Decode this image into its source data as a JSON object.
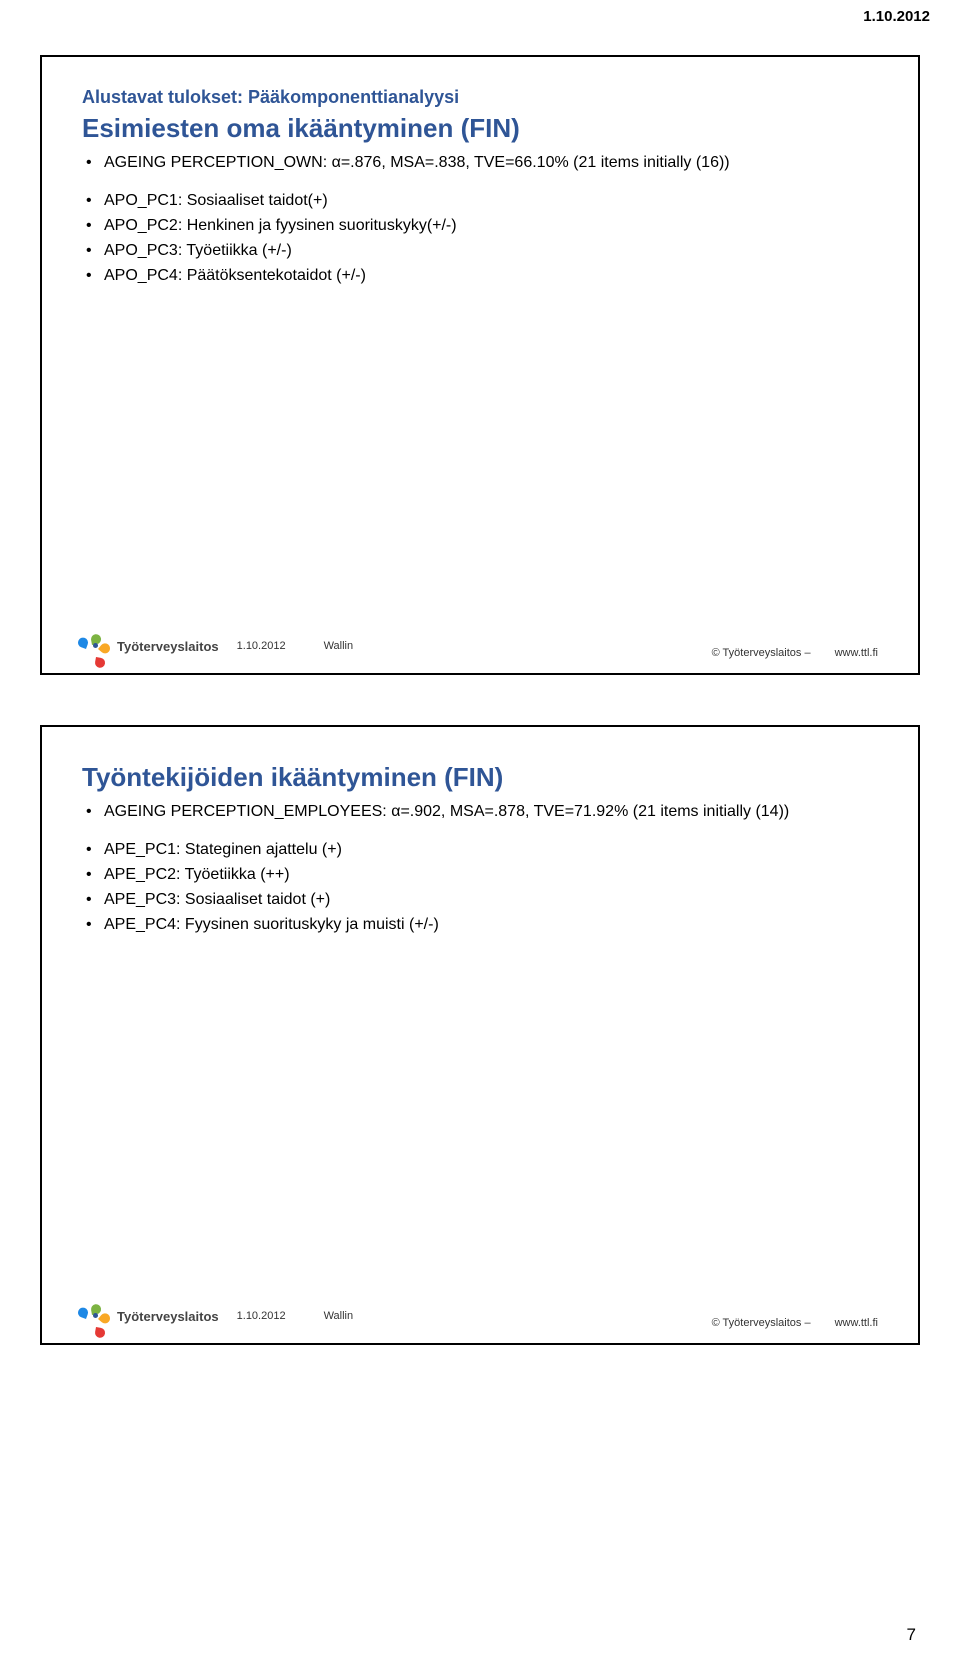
{
  "page_date": "1.10.2012",
  "page_number": "7",
  "slide1": {
    "pre_title": "Alustavat tulokset: Pääkomponenttianalyysi",
    "title": "Esimiesten oma ikääntyminen (FIN)",
    "bullets_a": [
      "AGEING PERCEPTION_OWN: α=.876, MSA=.838, TVE=66.10%    (21 items initially (16))"
    ],
    "bullets_b": [
      "APO_PC1: Sosiaaliset taidot(+)",
      "APO_PC2: Henkinen ja fyysinen suorituskyky(+/-)",
      "APO_PC3: Työetiikka (+/-)",
      "APO_PC4: Päätöksentekotaidot (+/-)"
    ],
    "footer": {
      "logo_text": "Työterveyslaitos",
      "date": "1.10.2012",
      "author": "Wallin",
      "copyright": "© Työterveyslaitos   –",
      "url": "www.ttl.fi"
    }
  },
  "slide2": {
    "title": "Työntekijöiden ikääntyminen (FIN)",
    "bullets_a": [
      "AGEING PERCEPTION_EMPLOYEES: α=.902, MSA=.878, TVE=71.92% (21 items initially (14))"
    ],
    "bullets_b": [
      "APE_PC1: Stateginen ajattelu (+)",
      "APE_PC2: Työetiikka (++)",
      "APE_PC3: Sosiaaliset taidot (+)",
      "APE_PC4: Fyysinen suorituskyky ja muisti (+/-)"
    ],
    "footer": {
      "logo_text": "Työterveyslaitos",
      "date": "1.10.2012",
      "author": "Wallin",
      "copyright": "© Työterveyslaitos   –",
      "url": "www.ttl.fi"
    }
  }
}
